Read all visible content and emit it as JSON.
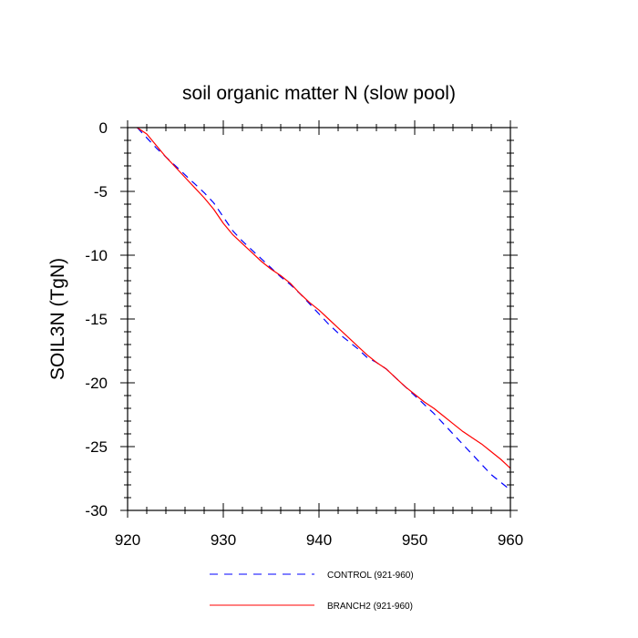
{
  "chart_data": {
    "type": "line",
    "title": "soil organic matter N (slow pool)",
    "xlabel": "",
    "ylabel": "SOIL3N  (TgN)",
    "xlim": [
      920,
      960
    ],
    "ylim": [
      -30,
      0
    ],
    "xticks": [
      920,
      930,
      940,
      950,
      960
    ],
    "yticks": [
      0,
      -5,
      -10,
      -15,
      -20,
      -25,
      -30
    ],
    "x_minor_step": 2,
    "y_minor_step": 1,
    "legend_position": "bottom",
    "series": [
      {
        "name": "CONTROL (921-960)",
        "color": "#0000ff",
        "dash": "dashed",
        "x": [
          921,
          922,
          923,
          924,
          925,
          926,
          927,
          928,
          929,
          930,
          931,
          932,
          933,
          934,
          935,
          936,
          937,
          938,
          939,
          940,
          941,
          942,
          943,
          944,
          945,
          946,
          947,
          948,
          949,
          950,
          951,
          952,
          953,
          954,
          955,
          956,
          957,
          958,
          959,
          960
        ],
        "y": [
          0,
          -0.8,
          -1.6,
          -2.3,
          -3.0,
          -3.7,
          -4.4,
          -5.1,
          -5.9,
          -7.0,
          -8.1,
          -8.9,
          -9.6,
          -10.3,
          -11.0,
          -11.7,
          -12.3,
          -13.0,
          -13.8,
          -14.6,
          -15.4,
          -16.1,
          -16.7,
          -17.3,
          -18.0,
          -18.4,
          -18.9,
          -19.6,
          -20.3,
          -21.0,
          -21.7,
          -22.4,
          -23.2,
          -24.0,
          -24.8,
          -25.6,
          -26.4,
          -27.2,
          -27.8,
          -28.4
        ]
      },
      {
        "name": "BRANCH2 (921-960)",
        "color": "#ff0000",
        "dash": "solid",
        "x": [
          921,
          922,
          923,
          924,
          925,
          926,
          927,
          928,
          929,
          930,
          931,
          932,
          933,
          934,
          935,
          936,
          937,
          938,
          939,
          940,
          941,
          942,
          943,
          944,
          945,
          946,
          947,
          948,
          949,
          950,
          951,
          952,
          953,
          954,
          955,
          956,
          957,
          958,
          959,
          960
        ],
        "y": [
          0,
          -0.5,
          -1.4,
          -2.3,
          -3.1,
          -3.9,
          -4.7,
          -5.5,
          -6.4,
          -7.5,
          -8.4,
          -9.1,
          -9.8,
          -10.5,
          -11.1,
          -11.6,
          -12.2,
          -13.0,
          -13.7,
          -14.3,
          -15.0,
          -15.7,
          -16.4,
          -17.1,
          -17.8,
          -18.4,
          -18.9,
          -19.6,
          -20.3,
          -20.9,
          -21.5,
          -22.0,
          -22.6,
          -23.2,
          -23.8,
          -24.3,
          -24.8,
          -25.4,
          -26.0,
          -26.7
        ]
      }
    ]
  }
}
